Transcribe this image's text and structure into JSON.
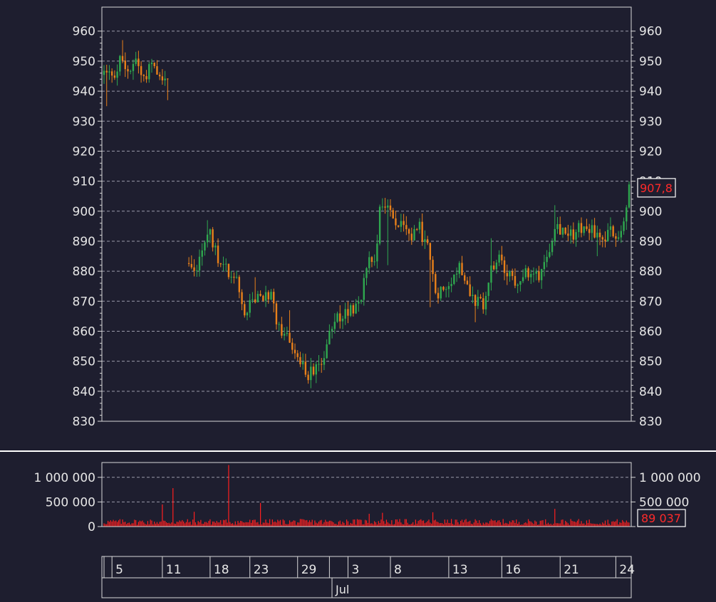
{
  "colors": {
    "background": "#1e1e2f",
    "axis": "#d8d8d8",
    "grid": "#9a9aaa",
    "text": "#e6e6e6",
    "up": "#2fa84f",
    "down": "#e8801a",
    "volume": "#ff1f1f",
    "price_badge_text": "#ff2a2a",
    "separator": "#ffffff"
  },
  "chart_data": [
    {
      "type": "candlestick",
      "name": "price",
      "grid": true,
      "ylim": [
        830,
        968
      ],
      "yticks": [
        830,
        840,
        850,
        860,
        870,
        880,
        890,
        900,
        910,
        920,
        930,
        940,
        950,
        960
      ],
      "ytick_labels": [
        "830",
        "840",
        "850",
        "860",
        "870",
        "880",
        "890",
        "900",
        "910",
        "920",
        "930",
        "940",
        "950",
        "960"
      ],
      "last_price_label": "907,8",
      "last_price": 907.8,
      "keypoints": [
        {
          "t": 0,
          "v": 946
        },
        {
          "t": 3,
          "v": 944
        },
        {
          "t": 6,
          "v": 950
        },
        {
          "t": 9,
          "v": 947
        },
        {
          "t": 12,
          "v": 951
        },
        {
          "t": 15,
          "v": 944
        },
        {
          "t": 18,
          "v": 950
        },
        {
          "t": 21,
          "v": 946
        },
        {
          "t": 24,
          "v": 943
        },
        {
          "t": 25,
          "v": null
        },
        {
          "t": 26,
          "v": null
        },
        {
          "t": 27,
          "v": null
        },
        {
          "t": 28,
          "v": null
        },
        {
          "t": 29,
          "v": null
        },
        {
          "t": 30,
          "v": null
        },
        {
          "t": 31,
          "v": 884
        },
        {
          "t": 34,
          "v": 880
        },
        {
          "t": 37,
          "v": 888
        },
        {
          "t": 40,
          "v": 893
        },
        {
          "t": 43,
          "v": 884
        },
        {
          "t": 46,
          "v": 880
        },
        {
          "t": 50,
          "v": 876
        },
        {
          "t": 53,
          "v": 866
        },
        {
          "t": 56,
          "v": 869
        },
        {
          "t": 60,
          "v": 872
        },
        {
          "t": 63,
          "v": 871
        },
        {
          "t": 66,
          "v": 860
        },
        {
          "t": 70,
          "v": 858
        },
        {
          "t": 73,
          "v": 851
        },
        {
          "t": 76,
          "v": 846
        },
        {
          "t": 79,
          "v": 846
        },
        {
          "t": 82,
          "v": 849
        },
        {
          "t": 85,
          "v": 858
        },
        {
          "t": 88,
          "v": 864
        },
        {
          "t": 91,
          "v": 866
        },
        {
          "t": 94,
          "v": 868
        },
        {
          "t": 97,
          "v": 872
        },
        {
          "t": 100,
          "v": 885
        },
        {
          "t": 102,
          "v": 883
        },
        {
          "t": 104,
          "v": 900
        },
        {
          "t": 107,
          "v": 902
        },
        {
          "t": 110,
          "v": 897
        },
        {
          "t": 113,
          "v": 893
        },
        {
          "t": 116,
          "v": 891
        },
        {
          "t": 119,
          "v": 894
        },
        {
          "t": 122,
          "v": 888
        },
        {
          "t": 125,
          "v": 872
        },
        {
          "t": 128,
          "v": 875
        },
        {
          "t": 131,
          "v": 878
        },
        {
          "t": 134,
          "v": 882
        },
        {
          "t": 137,
          "v": 876
        },
        {
          "t": 140,
          "v": 870
        },
        {
          "t": 143,
          "v": 868
        },
        {
          "t": 146,
          "v": 880
        },
        {
          "t": 149,
          "v": 884
        },
        {
          "t": 152,
          "v": 878
        },
        {
          "t": 155,
          "v": 877
        },
        {
          "t": 158,
          "v": 879
        },
        {
          "t": 161,
          "v": 878
        },
        {
          "t": 164,
          "v": 879
        },
        {
          "t": 167,
          "v": 885
        },
        {
          "t": 170,
          "v": 896
        },
        {
          "t": 173,
          "v": 894
        },
        {
          "t": 176,
          "v": 892
        },
        {
          "t": 179,
          "v": 894
        },
        {
          "t": 182,
          "v": 895
        },
        {
          "t": 185,
          "v": 893
        },
        {
          "t": 188,
          "v": 890
        },
        {
          "t": 191,
          "v": 893
        },
        {
          "t": 194,
          "v": 892
        },
        {
          "t": 196,
          "v": 897
        },
        {
          "t": 198,
          "v": 907.8
        }
      ],
      "spikes": [
        {
          "t": 1,
          "low": 935
        },
        {
          "t": 7,
          "high": 957
        },
        {
          "t": 24,
          "low": 937
        },
        {
          "t": 39,
          "high": 897
        },
        {
          "t": 57,
          "high": 878
        },
        {
          "t": 70,
          "high": 867
        },
        {
          "t": 78,
          "low": 841
        },
        {
          "t": 107,
          "low": 882
        },
        {
          "t": 123,
          "low": 868
        },
        {
          "t": 140,
          "low": 863
        },
        {
          "t": 146,
          "high": 891
        },
        {
          "t": 170,
          "high": 902
        },
        {
          "t": 186,
          "low": 885
        }
      ]
    },
    {
      "type": "bar",
      "name": "volume",
      "grid": true,
      "ylim": [
        0,
        1300000
      ],
      "yticks": [
        0,
        500000,
        1000000
      ],
      "ytick_labels": [
        "0",
        "500 000",
        "1 000 000"
      ],
      "last_volume_label": "89 037",
      "last_volume": 89037,
      "baseline": 110000,
      "spikes": [
        {
          "t": 22,
          "v": 450000
        },
        {
          "t": 26,
          "v": 780000
        },
        {
          "t": 34,
          "v": 300000
        },
        {
          "t": 47,
          "v": 1250000
        },
        {
          "t": 59,
          "v": 480000
        },
        {
          "t": 100,
          "v": 260000
        },
        {
          "t": 105,
          "v": 280000
        },
        {
          "t": 124,
          "v": 290000
        },
        {
          "t": 170,
          "v": 360000
        }
      ]
    }
  ],
  "x_axis": {
    "ticks": [
      {
        "label": "",
        "t": 0
      },
      {
        "label": "5",
        "t": 3
      },
      {
        "label": "11",
        "t": 22
      },
      {
        "label": "18",
        "t": 40
      },
      {
        "label": "23",
        "t": 55
      },
      {
        "label": "29",
        "t": 73
      },
      {
        "label": "",
        "t": 85
      },
      {
        "label": "3",
        "t": 92
      },
      {
        "label": "8",
        "t": 108
      },
      {
        "label": "13",
        "t": 130
      },
      {
        "label": "16",
        "t": 150
      },
      {
        "label": "21",
        "t": 172
      },
      {
        "label": "24",
        "t": 193
      }
    ],
    "month_label": "Jul"
  }
}
